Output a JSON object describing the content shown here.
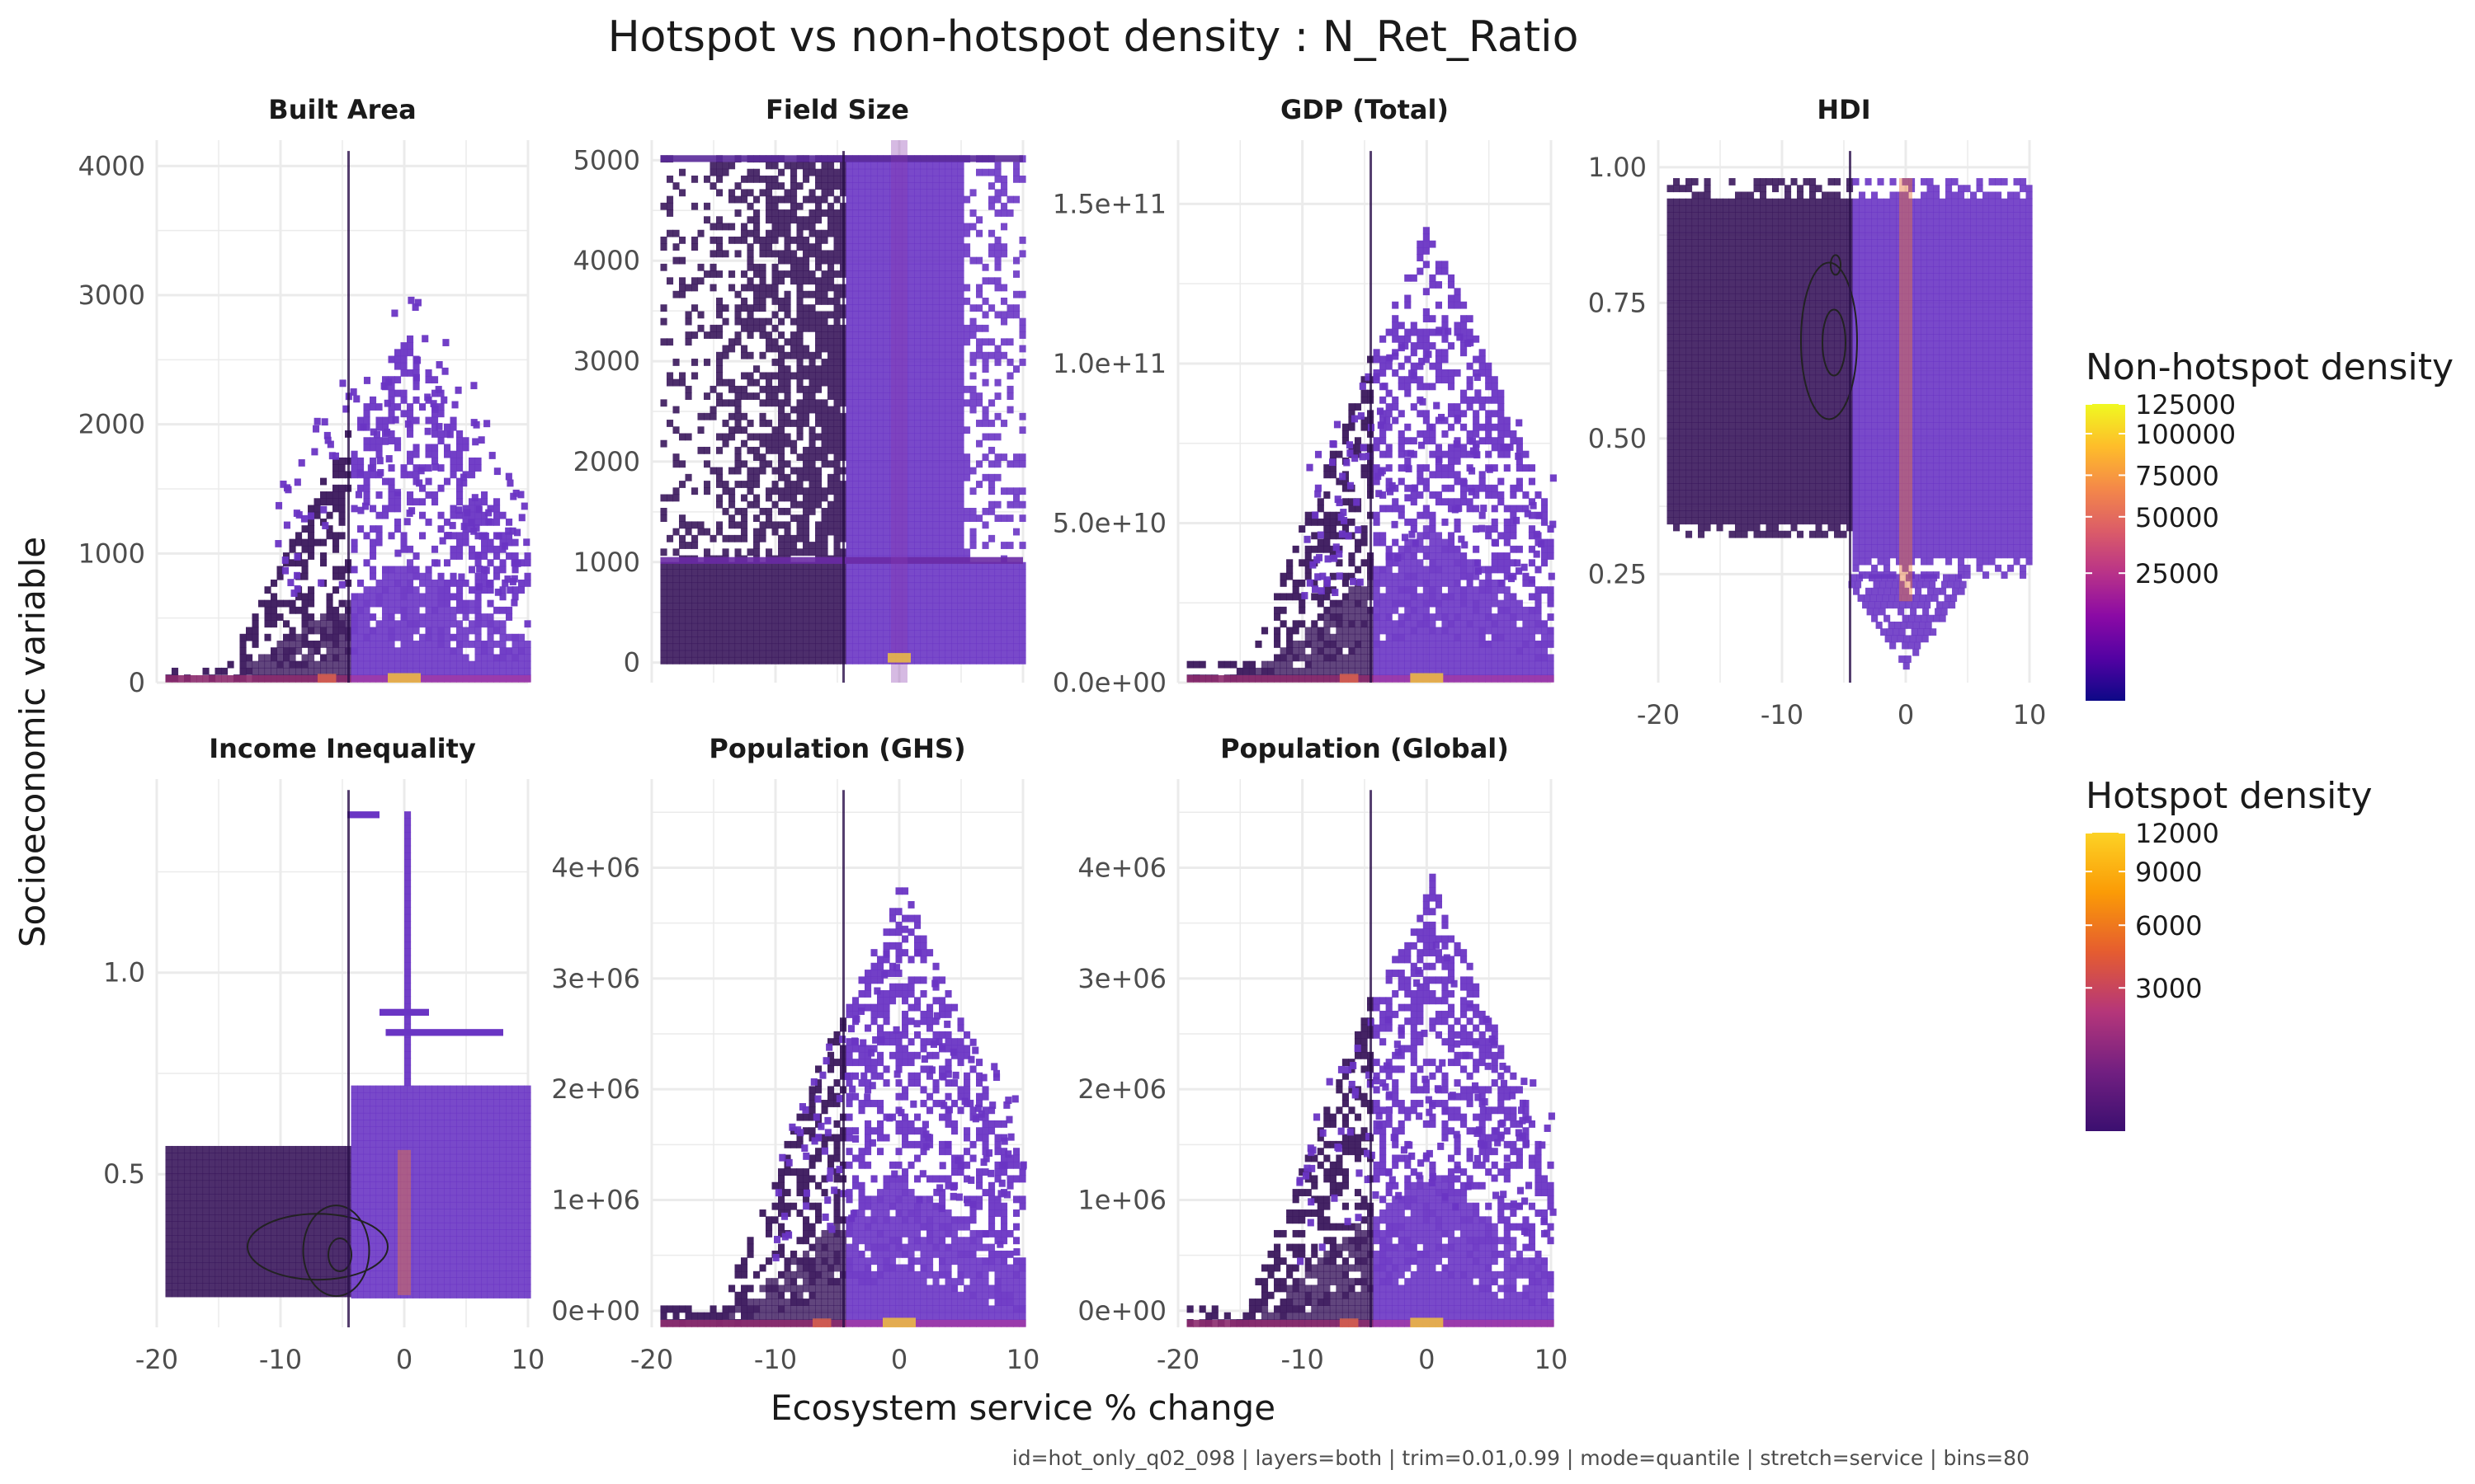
{
  "title": "Hotspot vs non-hotspot density : N_Ret_Ratio",
  "xlabel": "Ecosystem service % change",
  "ylabel": "Socioeconomic variable",
  "caption": "id=hot_only_q02_098 | layers=both | trim=0.01,0.99 | mode=quantile | stretch=service | bins=80",
  "colors": {
    "nonhotspot_scale": [
      "#0d0887",
      "#5302a3",
      "#8b0aa5",
      "#b83289",
      "#db5c68",
      "#f48849",
      "#febd2a",
      "#f0f921"
    ],
    "hotspot_scale": [
      "#3b0f70",
      "#721f81",
      "#b5367a",
      "#e55c30",
      "#fb9b06",
      "#fcd225"
    ],
    "hotspot_base": "#3a175c",
    "nonhotspot_base": "#6a35c4",
    "grid": "#ebebeb"
  },
  "legends": [
    {
      "title": "Non-hotspot density",
      "labels": [
        "125000",
        "100000",
        "75000",
        "50000",
        "25000"
      ],
      "positions": [
        0.0,
        0.1,
        0.24,
        0.38,
        0.57
      ]
    },
    {
      "title": "Hotspot density",
      "labels": [
        "12000",
        "9000",
        "6000",
        "3000"
      ],
      "positions": [
        0.0,
        0.13,
        0.31,
        0.52
      ]
    }
  ],
  "chart_data": {
    "type": "heatmap",
    "x_ticks": [
      "-20",
      "-10",
      "0",
      "10"
    ],
    "xlim": [
      -20,
      10
    ],
    "hotspot_threshold_x": -4.5,
    "panels": [
      {
        "label": "Built Area",
        "ylim": [
          0,
          4200
        ],
        "yticks": [
          0,
          1000,
          2000,
          3000,
          4000
        ],
        "ytick_labels": [
          "0",
          "1000",
          "2000",
          "3000",
          "4000"
        ]
      },
      {
        "label": "Field Size",
        "ylim": [
          -200,
          5200
        ],
        "yticks": [
          0,
          1000,
          2000,
          3000,
          4000,
          5000
        ],
        "ytick_labels": [
          "0",
          "1000",
          "2000",
          "3000",
          "4000",
          "5000"
        ]
      },
      {
        "label": "GDP (Total)",
        "ylim": [
          0,
          170000000000
        ],
        "yticks": [
          0,
          50000000000,
          100000000000,
          150000000000
        ],
        "ytick_labels": [
          "0.0e+00",
          "5.0e+10",
          "1.0e+11",
          "1.5e+11"
        ]
      },
      {
        "label": "HDI",
        "ylim": [
          0.05,
          1.05
        ],
        "yticks": [
          0.25,
          0.5,
          0.75,
          1.0
        ],
        "ytick_labels": [
          "0.25",
          "0.50",
          "0.75",
          "1.00"
        ]
      },
      {
        "label": "Income Inequality",
        "ylim": [
          0.12,
          1.48
        ],
        "yticks": [
          0.5,
          1.0
        ],
        "ytick_labels": [
          "0.5",
          "1.0"
        ]
      },
      {
        "label": "Population (GHS)",
        "ylim": [
          -150000,
          4800000
        ],
        "yticks": [
          0,
          1000000,
          2000000,
          3000000,
          4000000
        ],
        "ytick_labels": [
          "0e+00",
          "1e+06",
          "2e+06",
          "3e+06",
          "4e+06"
        ]
      },
      {
        "label": "Population (Global)",
        "ylim": [
          -150000,
          4800000
        ],
        "yticks": [
          0,
          1000000,
          2000000,
          3000000,
          4000000
        ],
        "ytick_labels": [
          "0e+00",
          "1e+06",
          "2e+06",
          "3e+06",
          "4e+06"
        ]
      }
    ]
  }
}
